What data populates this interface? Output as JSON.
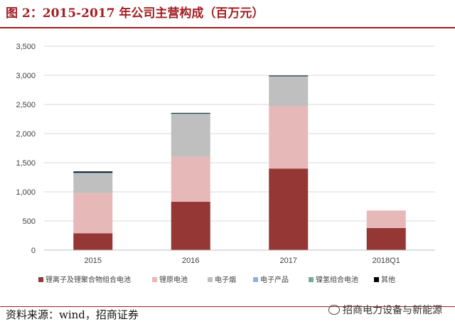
{
  "figure": {
    "title": "图 2：2015-2017 年公司主营构成（百万元）",
    "source": "资料来源：wind，招商证券",
    "watermark": "招商电力设备与新能源"
  },
  "colors": {
    "title": "#a41e22",
    "grid": "#d9d9d9",
    "axis": "#bfbfbf"
  },
  "chart_data": {
    "type": "bar",
    "stacked": true,
    "categories": [
      "2015",
      "2016",
      "2017",
      "2018Q1"
    ],
    "ylim": [
      0,
      3500
    ],
    "yticks": [
      0,
      500,
      1000,
      1500,
      2000,
      2500,
      3000,
      3500
    ],
    "ytick_labels": [
      "0",
      "500",
      "1,000",
      "1,500",
      "2,000",
      "2,500",
      "3,000",
      "3,500"
    ],
    "grid": true,
    "legend_position": "bottom",
    "series": [
      {
        "name": "锂离子及锂聚合物组合电池",
        "color": "#953735",
        "values": [
          290,
          830,
          1400,
          380
        ]
      },
      {
        "name": "锂原电池",
        "color": "#e6b9b8",
        "values": [
          690,
          770,
          1070,
          300
        ]
      },
      {
        "name": "电子烟",
        "color": "#bfbfbf",
        "values": [
          330,
          740,
          510,
          0
        ]
      },
      {
        "name": "电子产品",
        "color": "#8db3e2",
        "values": [
          10,
          5,
          5,
          0
        ]
      },
      {
        "name": "镍氢组合电池",
        "color": "#76a89c",
        "values": [
          10,
          5,
          5,
          0
        ]
      },
      {
        "name": "其他",
        "color": "#000000",
        "values": [
          20,
          5,
          5,
          0
        ]
      }
    ]
  }
}
